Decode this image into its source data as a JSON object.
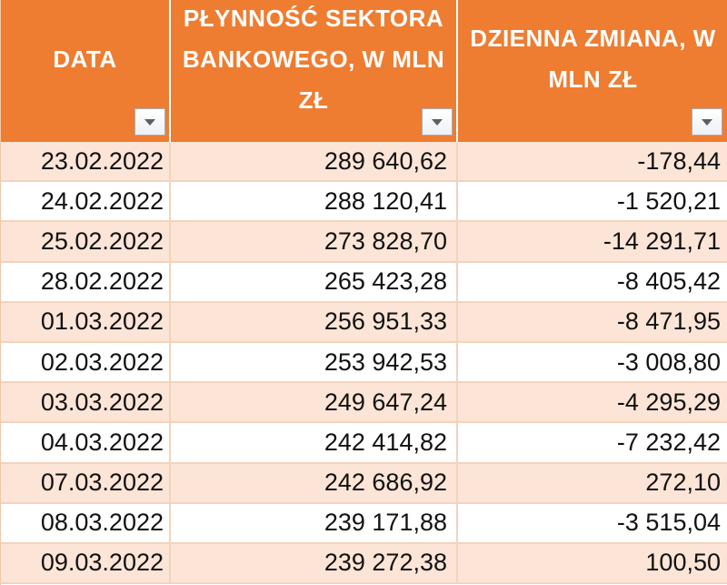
{
  "table": {
    "columns": [
      {
        "label": "DATA"
      },
      {
        "label": "PŁYNNOŚĆ SEKTORA BANKOWEGO, W MLN ZŁ"
      },
      {
        "label": "DZIENNA ZMIANA, W MLN ZŁ"
      }
    ],
    "rows": [
      {
        "date": "23.02.2022",
        "liquidity": "289 640,62",
        "change": "-178,44"
      },
      {
        "date": "24.02.2022",
        "liquidity": "288 120,41",
        "change": "-1 520,21"
      },
      {
        "date": "25.02.2022",
        "liquidity": "273 828,70",
        "change": "-14 291,71"
      },
      {
        "date": "28.02.2022",
        "liquidity": "265 423,28",
        "change": "-8 405,42"
      },
      {
        "date": "01.03.2022",
        "liquidity": "256 951,33",
        "change": "-8 471,95"
      },
      {
        "date": "02.03.2022",
        "liquidity": "253 942,53",
        "change": "-3 008,80"
      },
      {
        "date": "03.03.2022",
        "liquidity": "249 647,24",
        "change": "-4 295,29"
      },
      {
        "date": "04.03.2022",
        "liquidity": "242 414,82",
        "change": "-7 232,42"
      },
      {
        "date": "07.03.2022",
        "liquidity": "242 686,92",
        "change": "272,10"
      },
      {
        "date": "08.03.2022",
        "liquidity": "239 171,88",
        "change": "-3 515,04"
      },
      {
        "date": "09.03.2022",
        "liquidity": "239 272,38",
        "change": "100,50"
      }
    ]
  },
  "colors": {
    "header_bg": "#ee7d31",
    "header_text": "#ffffff",
    "band_row": "#fce4d6",
    "plain_row": "#ffffff",
    "grid_line": "#f2d3bd"
  },
  "icons": {
    "filter": "filter-dropdown-arrow-icon"
  }
}
